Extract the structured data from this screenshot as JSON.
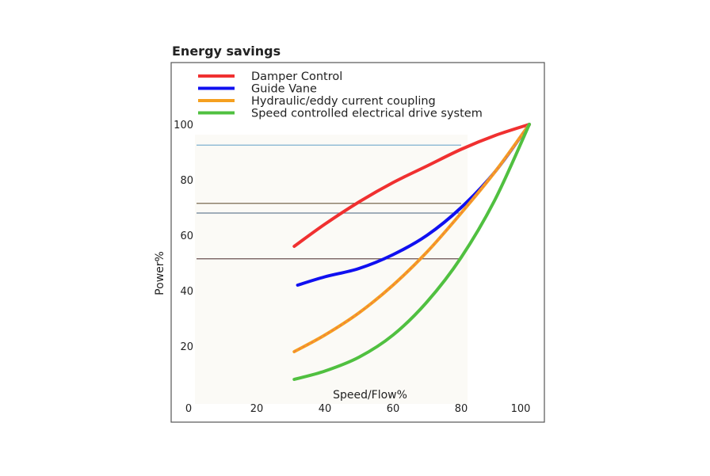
{
  "chart_data": {
    "type": "line",
    "title": "Energy savings",
    "xlabel": "Speed/Flow%",
    "ylabel": "Power%",
    "xlim": [
      0,
      100
    ],
    "ylim": [
      0,
      100
    ],
    "x_ticks": [
      0,
      20,
      40,
      60,
      80,
      100
    ],
    "y_ticks": [
      20,
      40,
      60,
      80,
      100
    ],
    "legend_position": "top-left",
    "grid": false,
    "reference_lines": [
      {
        "y": 92.5,
        "x_end": 80,
        "color": "#7fb0d0"
      },
      {
        "y": 71.5,
        "x_end": 80,
        "color": "#7a6a50"
      },
      {
        "y": 68,
        "x_end": 80,
        "color": "#6a7f95"
      },
      {
        "y": 51.5,
        "x_end": 80,
        "color": "#6a5050"
      }
    ],
    "series": [
      {
        "name": "Damper Control",
        "color": "#f03030",
        "dashed": false,
        "x": [
          31,
          40,
          50,
          60,
          70,
          80,
          90,
          100
        ],
        "y": [
          56,
          64,
          72,
          79,
          85,
          91,
          96,
          100
        ]
      },
      {
        "name": "Guide Vane",
        "color": "#1010f0",
        "dashed": false,
        "x": [
          32,
          40,
          50,
          60,
          70,
          80,
          90,
          100
        ],
        "y": [
          42,
          45,
          48,
          53,
          60,
          70,
          83,
          100
        ]
      },
      {
        "name": "Hydraulic/eddy current coupling",
        "color": "#f5a020",
        "dashed": true,
        "x": [
          31,
          40,
          50,
          60,
          70,
          80,
          90,
          100
        ],
        "y": [
          18,
          24,
          32,
          42,
          54,
          68,
          83,
          100
        ]
      },
      {
        "name": "Speed controlled electrical drive system",
        "color": "#50c040",
        "dashed": false,
        "x": [
          31,
          40,
          50,
          60,
          70,
          80,
          90,
          100
        ],
        "y": [
          8,
          11,
          16,
          24,
          36,
          52,
          73,
          100
        ]
      }
    ]
  }
}
